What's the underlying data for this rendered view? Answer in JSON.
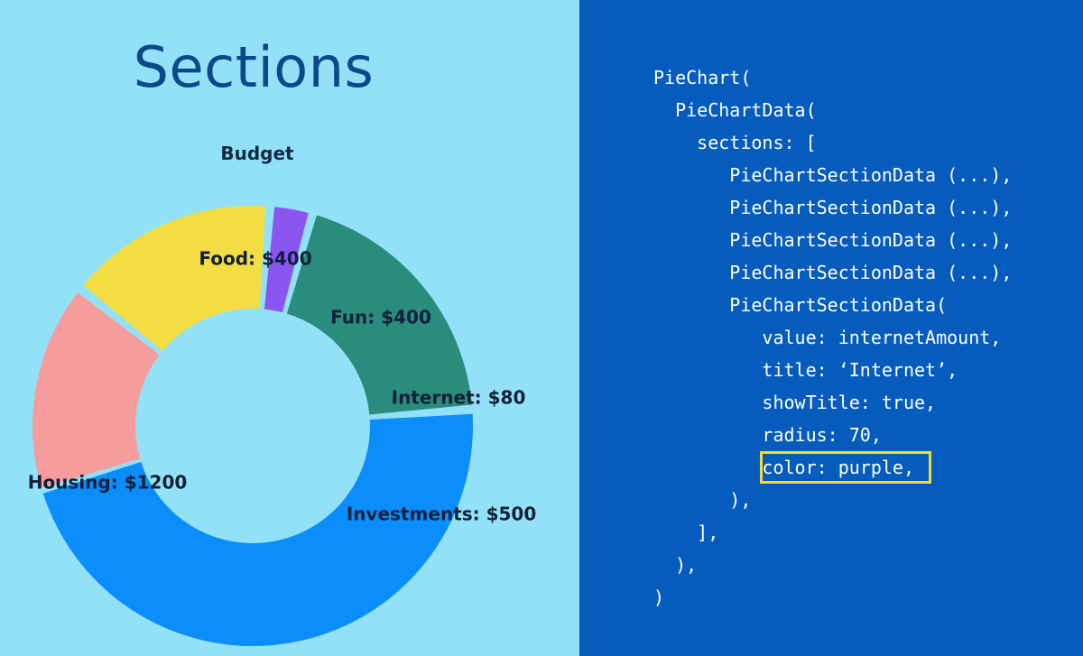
{
  "heading": "Sections",
  "chart_data": {
    "type": "pie",
    "variant": "donut",
    "title": "Budget",
    "slices": [
      {
        "label": "Food: $400",
        "category": "Food",
        "value": 400,
        "color": "#f69c9c"
      },
      {
        "label": "Fun: $400",
        "category": "Fun",
        "value": 400,
        "color": "#f4dd43"
      },
      {
        "label": "Internet: $80",
        "category": "Internet",
        "value": 80,
        "color": "#8b55f2"
      },
      {
        "label": "Investments: $500",
        "category": "Investments",
        "value": 500,
        "color": "#2a8c7c"
      },
      {
        "label": "Housing: $1200",
        "category": "Housing",
        "value": 1200,
        "color": "#0b8dfc"
      }
    ]
  },
  "code": {
    "lines": [
      "PieChart(",
      "  PieChartData(",
      "    sections: [",
      "       PieChartSectionData (...),",
      "       PieChartSectionData (...),",
      "       PieChartSectionData (...),",
      "       PieChartSectionData (...),",
      "       PieChartSectionData(",
      "          value: internetAmount,",
      "          title: ‘Internet’,",
      "          showTitle: true,",
      "          radius: 70,",
      "          color: purple,",
      "       ),",
      "    ],",
      "  ),",
      ")"
    ],
    "highlighted_line": 12,
    "highlight_color": "#f2dd37"
  },
  "colors": {
    "left_background": "#93e1f7",
    "right_background": "#055cbc"
  }
}
